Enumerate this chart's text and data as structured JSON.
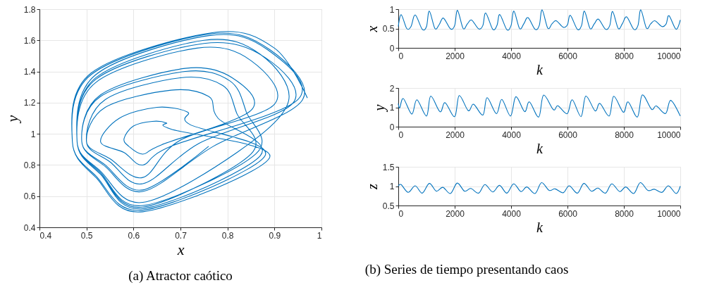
{
  "chart_data": [
    {
      "type": "line",
      "title": "(a) Atractor caótico",
      "xlabel": "x",
      "ylabel": "y",
      "xlim": [
        0.4,
        1
      ],
      "xticks": [
        0.4,
        0.5,
        0.6,
        0.7,
        0.8,
        0.9,
        1
      ],
      "ylim": [
        0.4,
        1.8
      ],
      "yticks": [
        0.4,
        0.6,
        0.8,
        1,
        1.2,
        1.4,
        1.6,
        1.8
      ],
      "grid": true,
      "marker": "none",
      "line_style": "solid",
      "series": [
        {
          "color": "#0072bd",
          "x": [
            0.97,
            0.9,
            0.77,
            0.51,
            0.47,
            0.52,
            0.62,
            0.89,
            0.68,
            0.67,
            0.64,
            0.6,
            0.58,
            0.59,
            0.62,
            0.66,
            0.85,
            0.81,
            0.71,
            0.53,
            0.49,
            0.54,
            0.62,
            0.77,
            0.96,
            0.89,
            0.76,
            0.51,
            0.47,
            0.52,
            0.62,
            0.88,
            0.72,
            0.715,
            0.65,
            0.57,
            0.53,
            0.58,
            0.62,
            0.68,
            0.95,
            0.885,
            0.76,
            0.52,
            0.48,
            0.53,
            0.62,
            0.87,
            0.78,
            0.76,
            0.68,
            0.54,
            0.5,
            0.55,
            0.62,
            0.7,
            0.9,
            0.85,
            0.735,
            0.52,
            0.48,
            0.53,
            0.62,
            0.82,
            0.93,
            0.87,
            0.75,
            0.52,
            0.48,
            0.53,
            0.62,
            0.85,
            0.82,
            0.79,
            0.7,
            0.54,
            0.5,
            0.55,
            0.62,
            0.74,
            0.94,
            0.88,
            0.75,
            0.52,
            0.48,
            0.53,
            0.62,
            0.86,
            0.84,
            0.805,
            0.71,
            0.53,
            0.49,
            0.54,
            0.62,
            0.76
          ],
          "values": [
            1.23,
            1.55,
            1.65,
            1.39,
            0.95,
            0.72,
            0.5,
            0.85,
            1.03,
            1.07,
            1.08,
            1.05,
            0.97,
            0.92,
            0.87,
            0.93,
            1.15,
            1.36,
            1.42,
            1.25,
            0.95,
            0.79,
            0.63,
            0.92,
            1.22,
            1.54,
            1.64,
            1.38,
            0.95,
            0.73,
            0.51,
            0.86,
            1.06,
            1.14,
            1.17,
            1.1,
            0.95,
            0.88,
            0.8,
            0.92,
            1.22,
            1.54,
            1.63,
            1.38,
            0.95,
            0.74,
            0.52,
            0.86,
            1.1,
            1.24,
            1.28,
            1.17,
            0.95,
            0.84,
            0.72,
            0.96,
            1.19,
            1.47,
            1.55,
            1.33,
            0.95,
            0.76,
            0.56,
            0.88,
            1.21,
            1.51,
            1.6,
            1.36,
            0.95,
            0.74,
            0.53,
            0.87,
            1.13,
            1.31,
            1.36,
            1.22,
            0.95,
            0.82,
            0.68,
            0.94,
            1.2,
            1.49,
            1.58,
            1.35,
            0.95,
            0.75,
            0.54,
            0.87,
            1.14,
            1.34,
            1.4,
            1.24,
            0.95,
            0.8,
            0.64,
            0.92
          ]
        }
      ]
    },
    {
      "type": "line",
      "xlabel": "k",
      "ylabel": "x",
      "xlim": [
        0,
        10000
      ],
      "xticks": [
        0,
        2000,
        4000,
        6000,
        8000,
        10000
      ],
      "ylim": [
        0,
        1
      ],
      "yticks": [
        0,
        0.5,
        1
      ],
      "grid": true,
      "marker": "none",
      "line_style": "solid",
      "series": [
        {
          "color": "#0072bd",
          "x": [
            0,
            100,
            300,
            450,
            600,
            850,
            1000,
            1100,
            1300,
            1450,
            1600,
            1850,
            2000,
            2100,
            2300,
            2450,
            2600,
            2850,
            3000,
            3100,
            3350,
            3500,
            3600,
            3850,
            4000,
            4100,
            4300,
            4450,
            4600,
            4850,
            5000,
            5100,
            5300,
            5450,
            5600,
            5850,
            6000,
            6100,
            6350,
            6500,
            6600,
            6800,
            6950,
            7100,
            7350,
            7500,
            7600,
            7800,
            7950,
            8100,
            8350,
            8500,
            8600,
            8800,
            8950,
            9100,
            9350,
            9500,
            9600,
            9850,
            10000
          ],
          "values": [
            0.55,
            0.86,
            0.5,
            0.55,
            0.85,
            0.48,
            0.55,
            0.95,
            0.5,
            0.6,
            0.77,
            0.49,
            0.58,
            0.97,
            0.5,
            0.62,
            0.72,
            0.49,
            0.58,
            0.9,
            0.48,
            0.58,
            0.86,
            0.47,
            0.58,
            0.95,
            0.5,
            0.62,
            0.78,
            0.48,
            0.58,
            0.98,
            0.51,
            0.62,
            0.7,
            0.53,
            0.6,
            0.84,
            0.48,
            0.58,
            0.95,
            0.5,
            0.62,
            0.74,
            0.48,
            0.58,
            0.94,
            0.5,
            0.63,
            0.8,
            0.48,
            0.58,
            0.98,
            0.51,
            0.62,
            0.7,
            0.55,
            0.62,
            0.83,
            0.48,
            0.72
          ]
        }
      ]
    },
    {
      "type": "line",
      "xlabel": "k",
      "ylabel": "y",
      "xlim": [
        0,
        10000
      ],
      "xticks": [
        0,
        2000,
        4000,
        6000,
        8000,
        10000
      ],
      "ylim": [
        0,
        2
      ],
      "yticks": [
        0,
        1,
        2
      ],
      "grid": true,
      "marker": "none",
      "line_style": "solid",
      "series": [
        {
          "color": "#0072bd",
          "x": [
            0,
            50,
            180,
            480,
            660,
            1000,
            1150,
            1480,
            1660,
            2000,
            2160,
            2480,
            2670,
            3000,
            3150,
            3480,
            3670,
            3980,
            4170,
            4480,
            4650,
            4980,
            5150,
            5500,
            5660,
            5990,
            6170,
            6480,
            6650,
            6980,
            7150,
            7480,
            7640,
            7980,
            8150,
            8480,
            8650,
            8980,
            9150,
            9480,
            9660,
            10000
          ],
          "values": [
            1.2,
            0.97,
            1.45,
            0.65,
            1.39,
            0.55,
            1.58,
            0.77,
            1.24,
            0.52,
            1.61,
            0.83,
            1.16,
            0.6,
            1.5,
            0.67,
            1.41,
            0.55,
            1.55,
            0.78,
            1.28,
            0.5,
            1.63,
            0.88,
            1.08,
            0.67,
            1.39,
            0.52,
            1.58,
            0.82,
            1.2,
            0.55,
            1.57,
            0.75,
            1.28,
            0.5,
            1.64,
            0.9,
            1.07,
            0.68,
            1.36,
            0.55
          ]
        }
      ]
    },
    {
      "type": "line",
      "xlabel": "k",
      "ylabel": "z",
      "xlim": [
        0,
        10000
      ],
      "xticks": [
        0,
        2000,
        4000,
        6000,
        8000,
        10000
      ],
      "ylim": [
        0.5,
        1.5
      ],
      "yticks": [
        0.5,
        1,
        1.5
      ],
      "grid": true,
      "marker": "none",
      "line_style": "solid",
      "annotations": [
        "(b) Series de tiempo presentando caos"
      ],
      "series": [
        {
          "color": "#0072bd",
          "x": [
            0,
            100,
            350,
            600,
            850,
            1100,
            1350,
            1580,
            1850,
            2090,
            2350,
            2570,
            2850,
            3070,
            3350,
            3590,
            3850,
            4090,
            4350,
            4560,
            4850,
            5080,
            5350,
            5560,
            5850,
            6060,
            6350,
            6580,
            6850,
            7080,
            7350,
            7570,
            7850,
            8070,
            8350,
            8580,
            8850,
            9080,
            9350,
            9580,
            9850,
            10000
          ],
          "values": [
            1.0,
            1.04,
            0.84,
            1.01,
            0.82,
            1.07,
            0.87,
            0.97,
            0.81,
            1.08,
            0.87,
            0.94,
            0.82,
            1.04,
            0.85,
            1.02,
            0.82,
            1.06,
            0.86,
            0.98,
            0.81,
            1.09,
            0.89,
            0.93,
            0.83,
            1.01,
            0.82,
            1.07,
            0.87,
            0.95,
            0.82,
            1.06,
            0.86,
            0.98,
            0.81,
            1.09,
            0.89,
            0.92,
            0.84,
            1.01,
            0.81,
            1.0
          ]
        }
      ]
    }
  ]
}
